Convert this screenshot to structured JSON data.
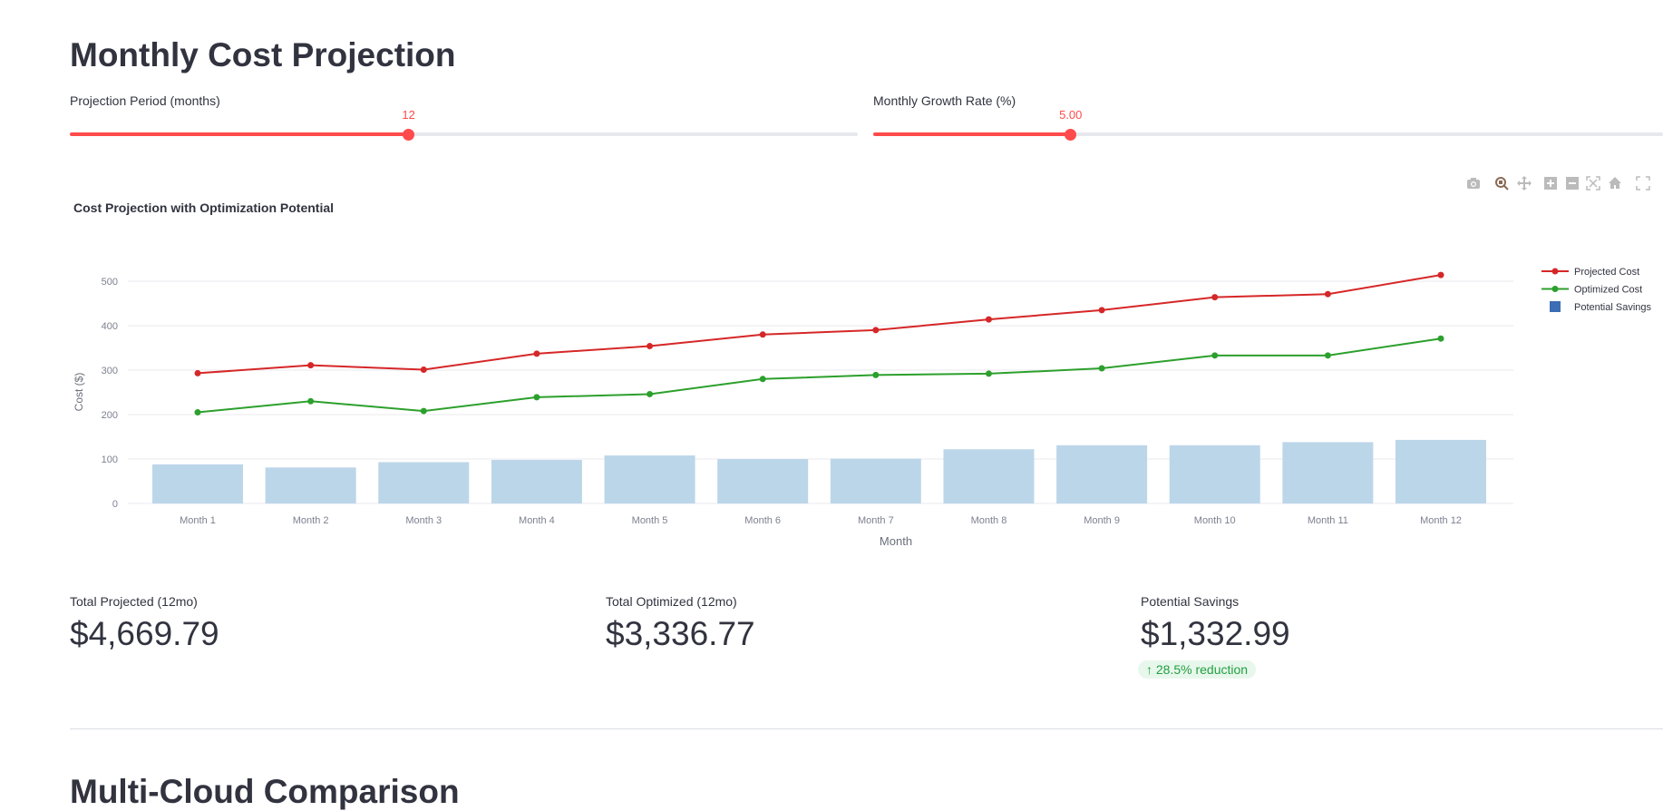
{
  "page_title": "Monthly Cost Projection",
  "sliders": [
    {
      "label": "Projection Period (months)",
      "value": "12",
      "fraction": 0.43
    },
    {
      "label": "Monthly Growth Rate (%)",
      "value": "5.00",
      "fraction": 0.25
    }
  ],
  "toolbar": [
    "camera-icon",
    "zoom-icon",
    "pan-icon",
    "zoom-in-icon",
    "zoom-out-icon",
    "autoscale-icon",
    "home-icon",
    "fullscreen-icon"
  ],
  "chart_data": {
    "type": "bar+line",
    "title": "Cost Projection with Optimization Potential",
    "xlabel": "Month",
    "ylabel": "Cost ($)",
    "ylim": [
      0,
      520
    ],
    "yticks": [
      0,
      100,
      200,
      300,
      400,
      500
    ],
    "grid": true,
    "legend_placement": "right",
    "categories": [
      "Month 1",
      "Month 2",
      "Month 3",
      "Month 4",
      "Month 5",
      "Month 6",
      "Month 7",
      "Month 8",
      "Month 9",
      "Month 10",
      "Month 11",
      "Month 12"
    ],
    "series": [
      {
        "name": "Projected Cost",
        "type": "line",
        "color": "#d62728",
        "values": [
          293,
          311,
          301,
          337,
          354,
          380,
          390,
          414,
          435,
          464,
          471,
          514
        ]
      },
      {
        "name": "Optimized Cost",
        "type": "line",
        "color": "#2ca02c",
        "values": [
          205,
          230,
          208,
          239,
          246,
          280,
          289,
          292,
          304,
          333,
          333,
          371
        ]
      },
      {
        "name": "Potential Savings",
        "type": "bar",
        "color": "#bcd6e9",
        "legend_color": "#3b6eb4",
        "values": [
          88,
          81,
          93,
          98,
          108,
          100,
          101,
          122,
          131,
          131,
          138,
          143
        ]
      }
    ]
  },
  "metrics": [
    {
      "label": "Total Projected (12mo)",
      "value": "$4,669.79"
    },
    {
      "label": "Total Optimized (12mo)",
      "value": "$3,336.77"
    },
    {
      "label": "Potential Savings",
      "value": "$1,332.99",
      "delta": "28.5% reduction"
    }
  ],
  "next_section_title": "Multi-Cloud Comparison"
}
